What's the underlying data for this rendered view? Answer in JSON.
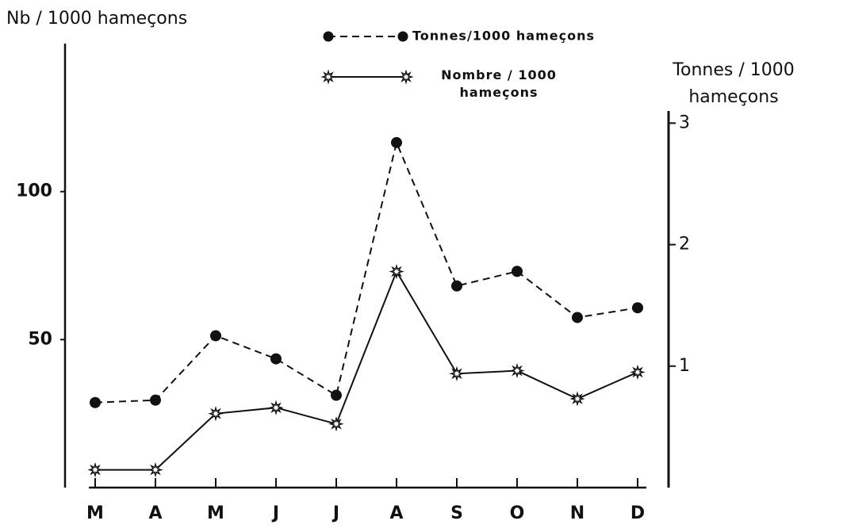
{
  "chart_data": {
    "type": "line",
    "ylabel": "Nb / 1000 hameçons",
    "y2label": "Tonnes / 1000 hameçons",
    "categories": [
      "M",
      "A",
      "M",
      "J",
      "J",
      "A",
      "S",
      "O",
      "N",
      "D"
    ],
    "ylim": [
      0,
      150
    ],
    "yticks": [
      50,
      100
    ],
    "y2lim": [
      0,
      3.1
    ],
    "y2ticks": [
      1,
      2,
      3
    ],
    "series": [
      {
        "name": "Tonnes/1000 hameçons",
        "color": "#111111",
        "line_style": "dashed",
        "marker": "circle",
        "axis": "y2",
        "values": [
          0.7,
          0.72,
          1.25,
          1.06,
          0.76,
          2.84,
          1.66,
          1.78,
          1.4,
          1.48
        ]
      },
      {
        "name": "Nombre / 1000 hameçons",
        "color": "#111111",
        "line_style": "solid",
        "marker": "star",
        "axis": "y",
        "values": [
          6,
          6,
          25,
          27,
          21.5,
          73,
          38.5,
          39.5,
          30,
          39
        ]
      }
    ]
  }
}
